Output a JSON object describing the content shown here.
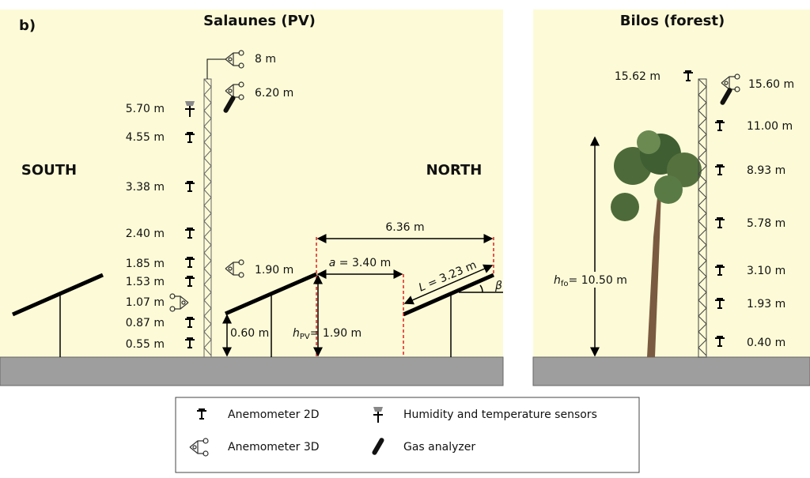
{
  "panel_label": "b)",
  "pv_site": {
    "title": "Salaunes (PV)",
    "south": "SOUTH",
    "north": "NORTH",
    "heights": [
      "8 m",
      "6.20 m",
      "5.70 m",
      "4.55 m",
      "3.38 m",
      "2.40 m",
      "1.85 m",
      "1.90 m",
      "1.53 m",
      "1.07 m",
      "0.87 m",
      "0.55 m"
    ],
    "span": "6.36 m",
    "row_gap": {
      "symbol": "a",
      "text": "= 3.40 m"
    },
    "panel_length": {
      "symbol": "L",
      "text": "= 3.23 m"
    },
    "tilt": "β",
    "low_edge": "0.60 m",
    "panel_height": {
      "symbol": "h",
      "subscript": "PV",
      "text": "= 1.90 m"
    }
  },
  "forest_site": {
    "title": "Bilos (forest)",
    "heights": [
      "15.62 m",
      "15.60 m",
      "11.00 m",
      "8.93 m",
      "5.78 m",
      "3.10 m",
      "1.93 m",
      "0.40 m"
    ],
    "tree_height": {
      "symbol": "h",
      "subscript": "fo",
      "text": "= 10.50 m"
    }
  },
  "legend": [
    "Anemometer 2D",
    "Humidity and temperature sensors",
    "Anemometer 3D",
    "Gas analyzer"
  ]
}
